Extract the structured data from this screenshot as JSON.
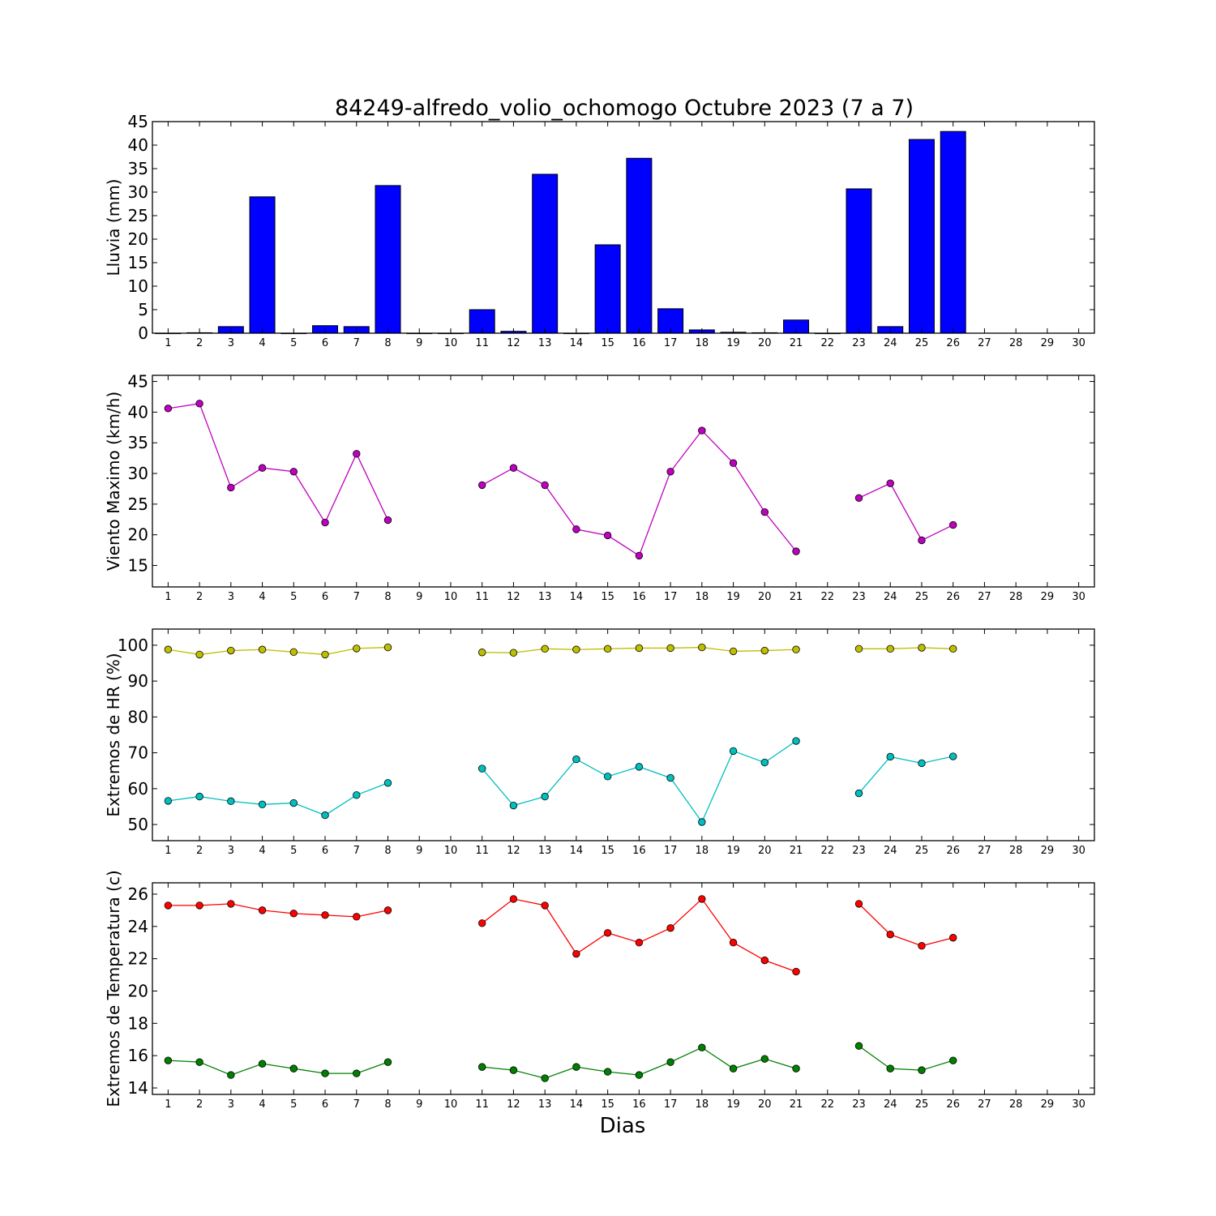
{
  "title": "84249-alfredo_volio_ochomogo Octubre 2023  (7 a 7)",
  "xlabel": "Dias",
  "colors": {
    "rain": "#0000ff",
    "wind": "#bf00bf",
    "hr_max": "#bfbf00",
    "hr_min": "#00bfbf",
    "temp_max": "#ff0000",
    "temp_min": "#008000"
  },
  "chart_data": [
    {
      "type": "bar",
      "ylabel": "Lluvia (mm)",
      "xlim": [
        0.5,
        30.5
      ],
      "ylim": [
        0,
        45
      ],
      "yticks": [
        0,
        5,
        10,
        15,
        20,
        25,
        30,
        35,
        40,
        45
      ],
      "categories": [
        1,
        2,
        3,
        4,
        5,
        6,
        7,
        8,
        9,
        10,
        11,
        12,
        13,
        14,
        15,
        16,
        17,
        18,
        19,
        20,
        21,
        22,
        23,
        24,
        25,
        26,
        27,
        28,
        29,
        30
      ],
      "values": [
        0,
        0.1,
        1.4,
        29,
        0,
        1.6,
        1.4,
        31.4,
        0,
        0,
        5,
        0.4,
        33.8,
        0,
        18.8,
        37.2,
        5.2,
        0.7,
        0.2,
        0.1,
        2.8,
        0,
        30.7,
        1.4,
        41.2,
        42.9,
        null,
        null,
        null,
        null
      ]
    },
    {
      "type": "line",
      "ylabel": "Viento Maximo (km/h)",
      "xlim": [
        0.5,
        30.5
      ],
      "ylim": [
        11.5,
        46
      ],
      "yticks": [
        15,
        20,
        25,
        30,
        35,
        40,
        45
      ],
      "x": [
        1,
        2,
        3,
        4,
        5,
        6,
        7,
        8,
        9,
        10,
        11,
        12,
        13,
        14,
        15,
        16,
        17,
        18,
        19,
        20,
        21,
        22,
        23,
        24,
        25,
        26,
        27,
        28,
        29,
        30
      ],
      "series": [
        {
          "values": [
            40.6,
            41.4,
            27.7,
            30.9,
            30.3,
            22,
            33.2,
            22.4,
            null,
            null,
            28.1,
            30.9,
            28.1,
            20.9,
            19.9,
            16.6,
            30.3,
            37,
            31.7,
            23.7,
            17.3,
            null,
            26,
            28.4,
            19.1,
            21.6,
            null,
            null,
            null,
            null
          ]
        }
      ]
    },
    {
      "type": "line",
      "ylabel": "Extremos de HR (%)",
      "xlim": [
        0.5,
        30.5
      ],
      "ylim": [
        45.5,
        104.5
      ],
      "yticks": [
        50,
        60,
        70,
        80,
        90,
        100
      ],
      "x": [
        1,
        2,
        3,
        4,
        5,
        6,
        7,
        8,
        9,
        10,
        11,
        12,
        13,
        14,
        15,
        16,
        17,
        18,
        19,
        20,
        21,
        22,
        23,
        24,
        25,
        26,
        27,
        28,
        29,
        30
      ],
      "series": [
        {
          "values": [
            98.8,
            97.4,
            98.5,
            98.8,
            98.1,
            97.4,
            99.1,
            99.4,
            null,
            null,
            98,
            97.9,
            99,
            98.8,
            99,
            99.2,
            99.2,
            99.4,
            98.3,
            98.5,
            98.8,
            null,
            99,
            99,
            99.3,
            99,
            null,
            null,
            null,
            null
          ]
        },
        {
          "values": [
            56.6,
            57.8,
            56.5,
            55.6,
            56,
            52.6,
            58.2,
            61.6,
            null,
            null,
            65.6,
            55.3,
            57.8,
            68.2,
            63.4,
            66.1,
            63,
            50.7,
            70.5,
            67.3,
            73.3,
            null,
            58.7,
            68.9,
            67.1,
            69,
            null,
            null,
            null,
            null
          ]
        }
      ]
    },
    {
      "type": "line",
      "ylabel": "Extremos de Temperatura (c)",
      "xlim": [
        0.5,
        30.5
      ],
      "ylim": [
        13.6,
        26.7
      ],
      "yticks": [
        14,
        16,
        18,
        20,
        22,
        24,
        26
      ],
      "x": [
        1,
        2,
        3,
        4,
        5,
        6,
        7,
        8,
        9,
        10,
        11,
        12,
        13,
        14,
        15,
        16,
        17,
        18,
        19,
        20,
        21,
        22,
        23,
        24,
        25,
        26,
        27,
        28,
        29,
        30
      ],
      "series": [
        {
          "values": [
            25.3,
            25.3,
            25.4,
            25,
            24.8,
            24.7,
            24.6,
            25,
            null,
            null,
            24.2,
            25.7,
            25.3,
            22.3,
            23.6,
            23,
            23.9,
            25.7,
            23,
            21.9,
            21.2,
            null,
            25.4,
            23.5,
            22.8,
            23.3,
            null,
            null,
            null,
            null
          ]
        },
        {
          "values": [
            15.7,
            15.6,
            14.8,
            15.5,
            15.2,
            14.9,
            14.9,
            15.6,
            null,
            null,
            15.3,
            15.1,
            14.6,
            15.3,
            15,
            14.8,
            15.6,
            16.5,
            15.2,
            15.8,
            15.2,
            null,
            16.6,
            15.2,
            15.1,
            15.7,
            null,
            null,
            null,
            null
          ]
        }
      ]
    }
  ]
}
